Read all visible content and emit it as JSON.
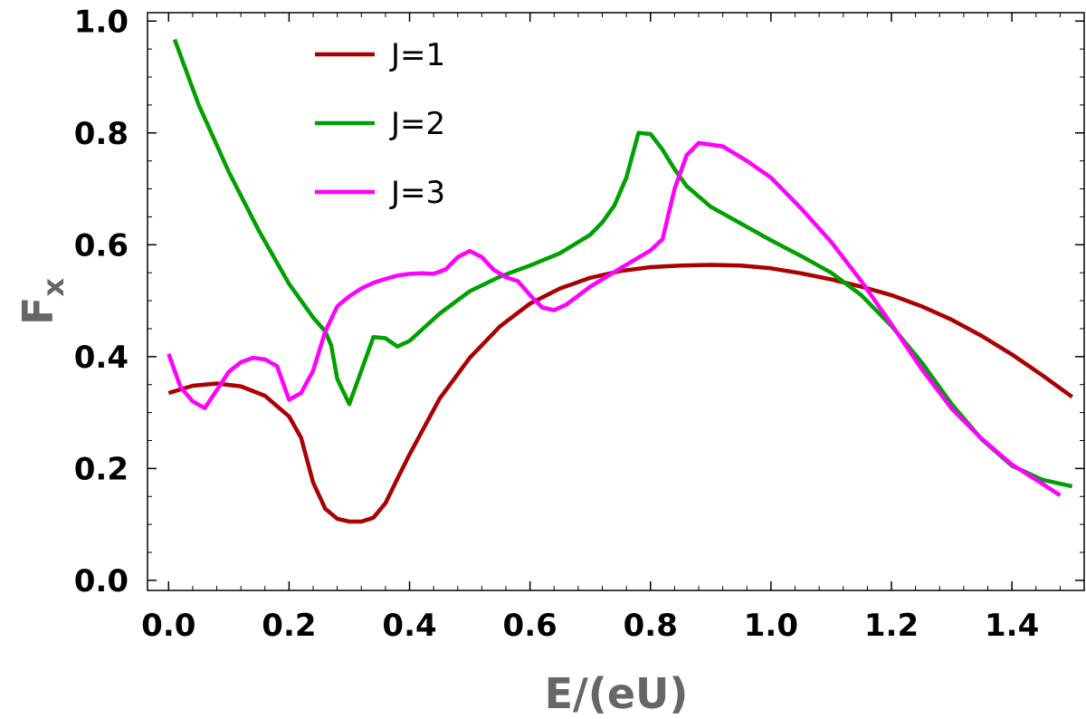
{
  "chart_data": {
    "type": "line",
    "xlabel": "E/(eU)",
    "ylabel": "F",
    "ylabel_sub": "x",
    "xlim": [
      -0.035,
      1.52
    ],
    "ylim": [
      -0.018,
      1.015
    ],
    "xticks": [
      0.0,
      0.2,
      0.4,
      0.6,
      0.8,
      1.0,
      1.2,
      1.4
    ],
    "xtick_labels": [
      "0.0",
      "0.2",
      "0.4",
      "0.6",
      "0.8",
      "1.0",
      "1.2",
      "1.4"
    ],
    "yticks": [
      0.0,
      0.2,
      0.4,
      0.6,
      0.8,
      1.0
    ],
    "ytick_labels": [
      "0.0",
      "0.2",
      "0.4",
      "0.6",
      "0.8",
      "1.0"
    ],
    "grid": false,
    "legend_position": "top-left",
    "series": [
      {
        "name": "J=1",
        "color": "#aa0000",
        "x": [
          0.0,
          0.04,
          0.08,
          0.12,
          0.16,
          0.2,
          0.22,
          0.24,
          0.26,
          0.28,
          0.3,
          0.32,
          0.34,
          0.36,
          0.38,
          0.4,
          0.45,
          0.5,
          0.55,
          0.6,
          0.65,
          0.7,
          0.75,
          0.8,
          0.85,
          0.9,
          0.95,
          1.0,
          1.05,
          1.1,
          1.15,
          1.2,
          1.25,
          1.3,
          1.35,
          1.4,
          1.45,
          1.5
        ],
        "y": [
          0.335,
          0.348,
          0.352,
          0.347,
          0.33,
          0.293,
          0.255,
          0.175,
          0.128,
          0.11,
          0.105,
          0.105,
          0.112,
          0.138,
          0.182,
          0.225,
          0.325,
          0.398,
          0.454,
          0.495,
          0.522,
          0.541,
          0.553,
          0.56,
          0.563,
          0.564,
          0.563,
          0.558,
          0.549,
          0.538,
          0.525,
          0.51,
          0.49,
          0.466,
          0.437,
          0.404,
          0.367,
          0.328
        ]
      },
      {
        "name": "J=2",
        "color": "#00a000",
        "x": [
          0.01,
          0.05,
          0.1,
          0.15,
          0.2,
          0.24,
          0.26,
          0.27,
          0.28,
          0.3,
          0.32,
          0.34,
          0.36,
          0.38,
          0.4,
          0.45,
          0.5,
          0.55,
          0.6,
          0.65,
          0.7,
          0.72,
          0.74,
          0.76,
          0.78,
          0.8,
          0.82,
          0.84,
          0.86,
          0.9,
          0.95,
          1.0,
          1.05,
          1.1,
          1.15,
          1.2,
          1.25,
          1.3,
          1.35,
          1.4,
          1.45,
          1.5
        ],
        "y": [
          0.967,
          0.85,
          0.73,
          0.625,
          0.53,
          0.47,
          0.445,
          0.42,
          0.36,
          0.315,
          0.375,
          0.435,
          0.433,
          0.418,
          0.428,
          0.477,
          0.517,
          0.543,
          0.563,
          0.585,
          0.618,
          0.64,
          0.67,
          0.72,
          0.8,
          0.798,
          0.77,
          0.735,
          0.705,
          0.668,
          0.638,
          0.608,
          0.58,
          0.55,
          0.51,
          0.455,
          0.39,
          0.315,
          0.252,
          0.205,
          0.18,
          0.168
        ]
      },
      {
        "name": "J=3",
        "color": "#ff00ff",
        "x": [
          0.0,
          0.02,
          0.04,
          0.06,
          0.08,
          0.1,
          0.12,
          0.14,
          0.16,
          0.18,
          0.2,
          0.22,
          0.24,
          0.26,
          0.28,
          0.3,
          0.32,
          0.34,
          0.36,
          0.38,
          0.4,
          0.42,
          0.44,
          0.46,
          0.48,
          0.5,
          0.52,
          0.54,
          0.56,
          0.58,
          0.6,
          0.62,
          0.64,
          0.66,
          0.7,
          0.75,
          0.8,
          0.82,
          0.84,
          0.86,
          0.88,
          0.92,
          0.96,
          1.0,
          1.05,
          1.1,
          1.15,
          1.2,
          1.25,
          1.3,
          1.35,
          1.4,
          1.45,
          1.48
        ],
        "y": [
          0.405,
          0.345,
          0.32,
          0.308,
          0.34,
          0.373,
          0.39,
          0.398,
          0.395,
          0.383,
          0.323,
          0.335,
          0.375,
          0.445,
          0.49,
          0.508,
          0.522,
          0.532,
          0.539,
          0.545,
          0.548,
          0.549,
          0.548,
          0.556,
          0.578,
          0.589,
          0.578,
          0.555,
          0.542,
          0.535,
          0.51,
          0.488,
          0.483,
          0.493,
          0.525,
          0.558,
          0.59,
          0.61,
          0.7,
          0.76,
          0.782,
          0.776,
          0.75,
          0.72,
          0.665,
          0.605,
          0.535,
          0.458,
          0.378,
          0.307,
          0.253,
          0.207,
          0.173,
          0.152
        ]
      }
    ]
  }
}
